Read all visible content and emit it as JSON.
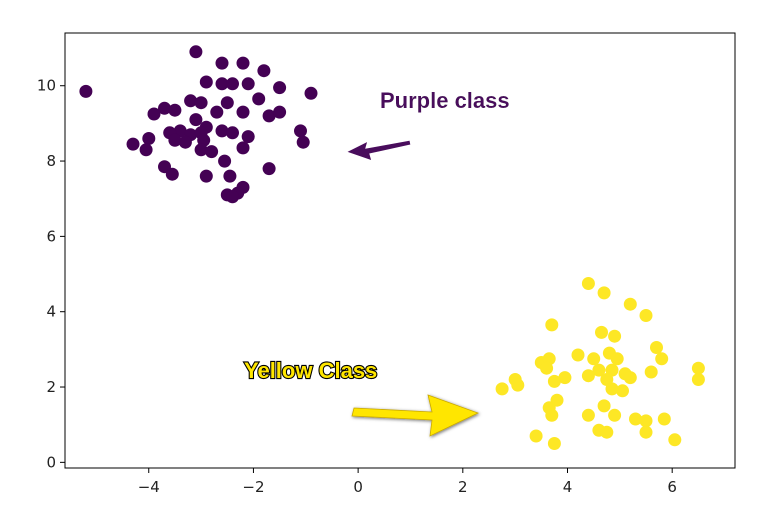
{
  "chart_data": {
    "type": "scatter",
    "title": "",
    "xlabel": "",
    "ylabel": "",
    "xlim": [
      -5.6,
      7.2
    ],
    "ylim": [
      -0.15,
      11.4
    ],
    "xticks": [
      -4,
      -2,
      0,
      2,
      4,
      6
    ],
    "xtick_labels": [
      "−4",
      "−2",
      "0",
      "2",
      "4",
      "6"
    ],
    "yticks": [
      0,
      2,
      4,
      6,
      8,
      10
    ],
    "ytick_labels": [
      "0",
      "2",
      "4",
      "6",
      "8",
      "10"
    ],
    "grid": false,
    "series": [
      {
        "color": "#440154",
        "points": [
          [
            -5.2,
            9.85
          ],
          [
            -3.1,
            10.9
          ],
          [
            -2.6,
            10.6
          ],
          [
            -2.2,
            10.6
          ],
          [
            -1.8,
            10.4
          ],
          [
            -2.9,
            10.1
          ],
          [
            -2.6,
            10.05
          ],
          [
            -2.4,
            10.05
          ],
          [
            -2.1,
            10.05
          ],
          [
            -1.5,
            9.95
          ],
          [
            -0.9,
            9.8
          ],
          [
            -3.2,
            9.6
          ],
          [
            -3.0,
            9.55
          ],
          [
            -2.5,
            9.55
          ],
          [
            -1.9,
            9.65
          ],
          [
            -3.7,
            9.4
          ],
          [
            -3.5,
            9.35
          ],
          [
            -3.9,
            9.25
          ],
          [
            -2.7,
            9.3
          ],
          [
            -2.2,
            9.3
          ],
          [
            -1.7,
            9.2
          ],
          [
            -1.5,
            9.3
          ],
          [
            -3.1,
            9.1
          ],
          [
            -2.9,
            8.9
          ],
          [
            -3.4,
            8.8
          ],
          [
            -3.6,
            8.75
          ],
          [
            -3.2,
            8.7
          ],
          [
            -3.0,
            8.75
          ],
          [
            -2.6,
            8.8
          ],
          [
            -2.4,
            8.75
          ],
          [
            -2.1,
            8.65
          ],
          [
            -1.1,
            8.8
          ],
          [
            -4.0,
            8.6
          ],
          [
            -3.5,
            8.55
          ],
          [
            -3.3,
            8.5
          ],
          [
            -2.95,
            8.55
          ],
          [
            -4.3,
            8.45
          ],
          [
            -1.05,
            8.5
          ],
          [
            -4.05,
            8.3
          ],
          [
            -3.0,
            8.3
          ],
          [
            -2.8,
            8.25
          ],
          [
            -2.2,
            8.35
          ],
          [
            -2.55,
            8.0
          ],
          [
            -3.7,
            7.85
          ],
          [
            -1.7,
            7.8
          ],
          [
            -3.55,
            7.65
          ],
          [
            -2.9,
            7.6
          ],
          [
            -2.45,
            7.6
          ],
          [
            -2.2,
            7.3
          ],
          [
            -2.3,
            7.15
          ],
          [
            -2.5,
            7.1
          ],
          [
            -2.4,
            7.05
          ]
        ]
      },
      {
        "color": "#fde725",
        "points": [
          [
            4.4,
            4.75
          ],
          [
            4.7,
            4.5
          ],
          [
            5.2,
            4.2
          ],
          [
            5.5,
            3.9
          ],
          [
            3.7,
            3.65
          ],
          [
            4.65,
            3.45
          ],
          [
            4.9,
            3.35
          ],
          [
            5.7,
            3.05
          ],
          [
            4.2,
            2.85
          ],
          [
            4.5,
            2.75
          ],
          [
            4.8,
            2.9
          ],
          [
            4.95,
            2.75
          ],
          [
            5.8,
            2.75
          ],
          [
            3.5,
            2.65
          ],
          [
            3.65,
            2.75
          ],
          [
            3.6,
            2.5
          ],
          [
            4.6,
            2.45
          ],
          [
            4.85,
            2.45
          ],
          [
            5.1,
            2.35
          ],
          [
            5.6,
            2.4
          ],
          [
            6.5,
            2.5
          ],
          [
            4.4,
            2.3
          ],
          [
            4.75,
            2.2
          ],
          [
            5.2,
            2.25
          ],
          [
            3.95,
            2.25
          ],
          [
            3.75,
            2.15
          ],
          [
            3.0,
            2.2
          ],
          [
            3.05,
            2.05
          ],
          [
            2.75,
            1.95
          ],
          [
            4.85,
            1.95
          ],
          [
            5.05,
            1.9
          ],
          [
            6.5,
            2.2
          ],
          [
            3.8,
            1.65
          ],
          [
            3.65,
            1.45
          ],
          [
            4.7,
            1.5
          ],
          [
            3.7,
            1.25
          ],
          [
            4.4,
            1.25
          ],
          [
            4.9,
            1.25
          ],
          [
            5.3,
            1.15
          ],
          [
            5.5,
            1.1
          ],
          [
            5.85,
            1.15
          ],
          [
            4.6,
            0.85
          ],
          [
            4.75,
            0.8
          ],
          [
            5.5,
            0.8
          ],
          [
            3.4,
            0.7
          ],
          [
            3.75,
            0.5
          ],
          [
            6.05,
            0.6
          ]
        ]
      }
    ],
    "annotations": [
      {
        "text": "Purple class",
        "color": "#4a0a5c"
      },
      {
        "text": "Yellow Class",
        "color": "#ffe600"
      }
    ]
  }
}
